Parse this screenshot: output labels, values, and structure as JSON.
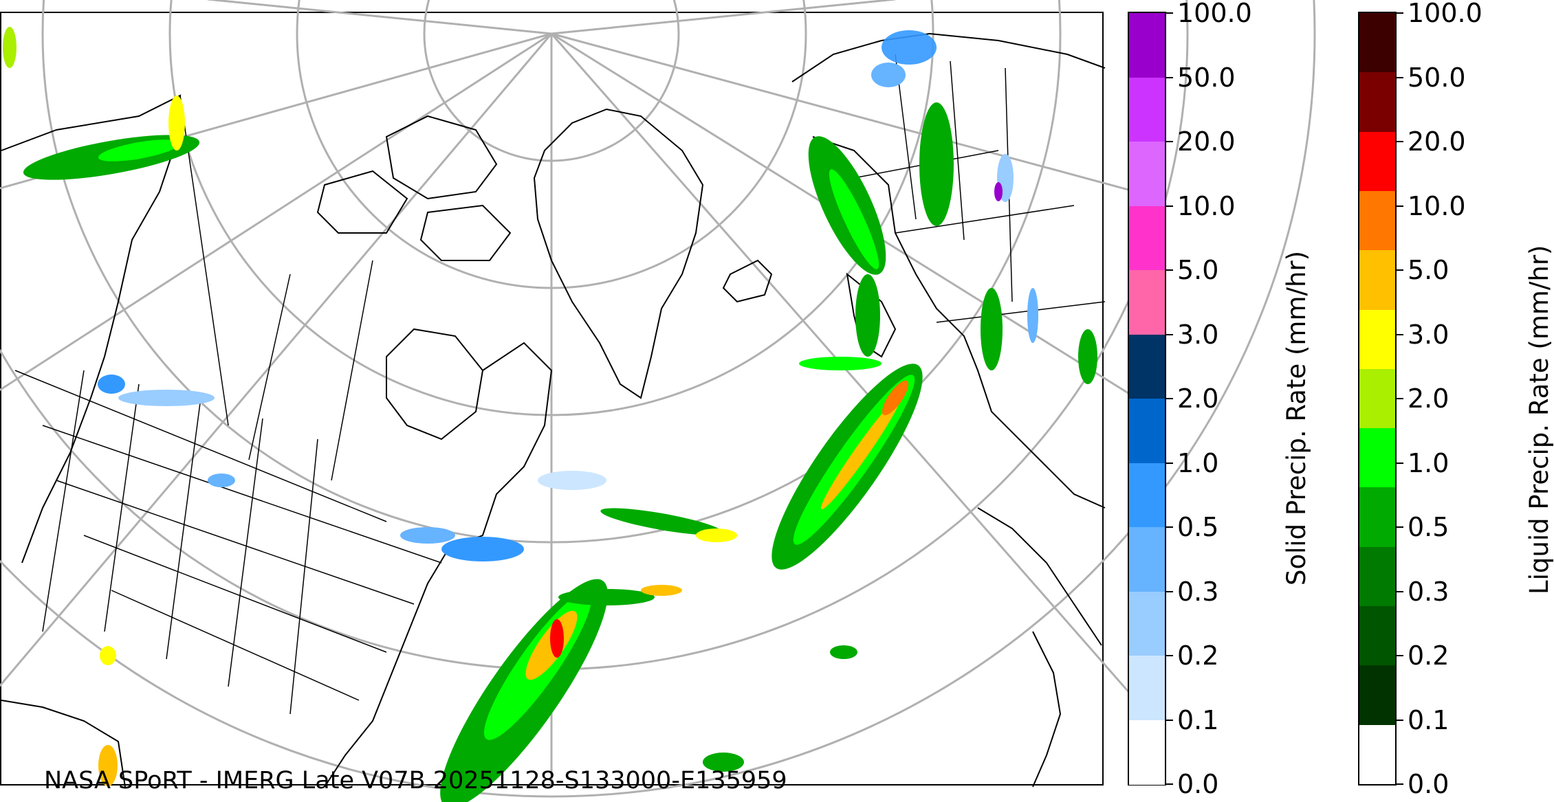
{
  "caption": "NASA SPoRT - IMERG Late V07B 20251128-S133000-E135959",
  "colorbars": {
    "solid": {
      "label": "Solid Precip. Rate (mm/hr)",
      "ticks": [
        "100.0",
        "50.0",
        "20.0",
        "10.0",
        "5.0",
        "3.0",
        "2.0",
        "1.0",
        "0.5",
        "0.3",
        "0.2",
        "0.1",
        "0.0"
      ],
      "colors": [
        "#9900cc",
        "#cc33ff",
        "#dd66ff",
        "#ff33cc",
        "#ff66aa",
        "#003366",
        "#0066cc",
        "#3399ff",
        "#66b3ff",
        "#99ccff",
        "#cce6ff",
        "#ffffff"
      ]
    },
    "liquid": {
      "label": "Liquid Precip. Rate (mm/hr)",
      "ticks": [
        "100.0",
        "50.0",
        "20.0",
        "10.0",
        "5.0",
        "3.0",
        "2.0",
        "1.0",
        "0.5",
        "0.3",
        "0.2",
        "0.1",
        "0.0"
      ],
      "colors": [
        "#3d0000",
        "#7a0000",
        "#ff0000",
        "#ff7700",
        "#ffc000",
        "#ffff00",
        "#aaee00",
        "#00ff00",
        "#00aa00",
        "#007a00",
        "#005500",
        "#003300",
        "#ffffff"
      ]
    }
  },
  "map": {
    "projection": "polar stereographic (North Pole)",
    "region": "North America, North Atlantic, Greenland, Europe",
    "features": [
      "coastlines",
      "country borders",
      "US state / Canadian province boundaries",
      "latitude/longitude graticule"
    ]
  }
}
